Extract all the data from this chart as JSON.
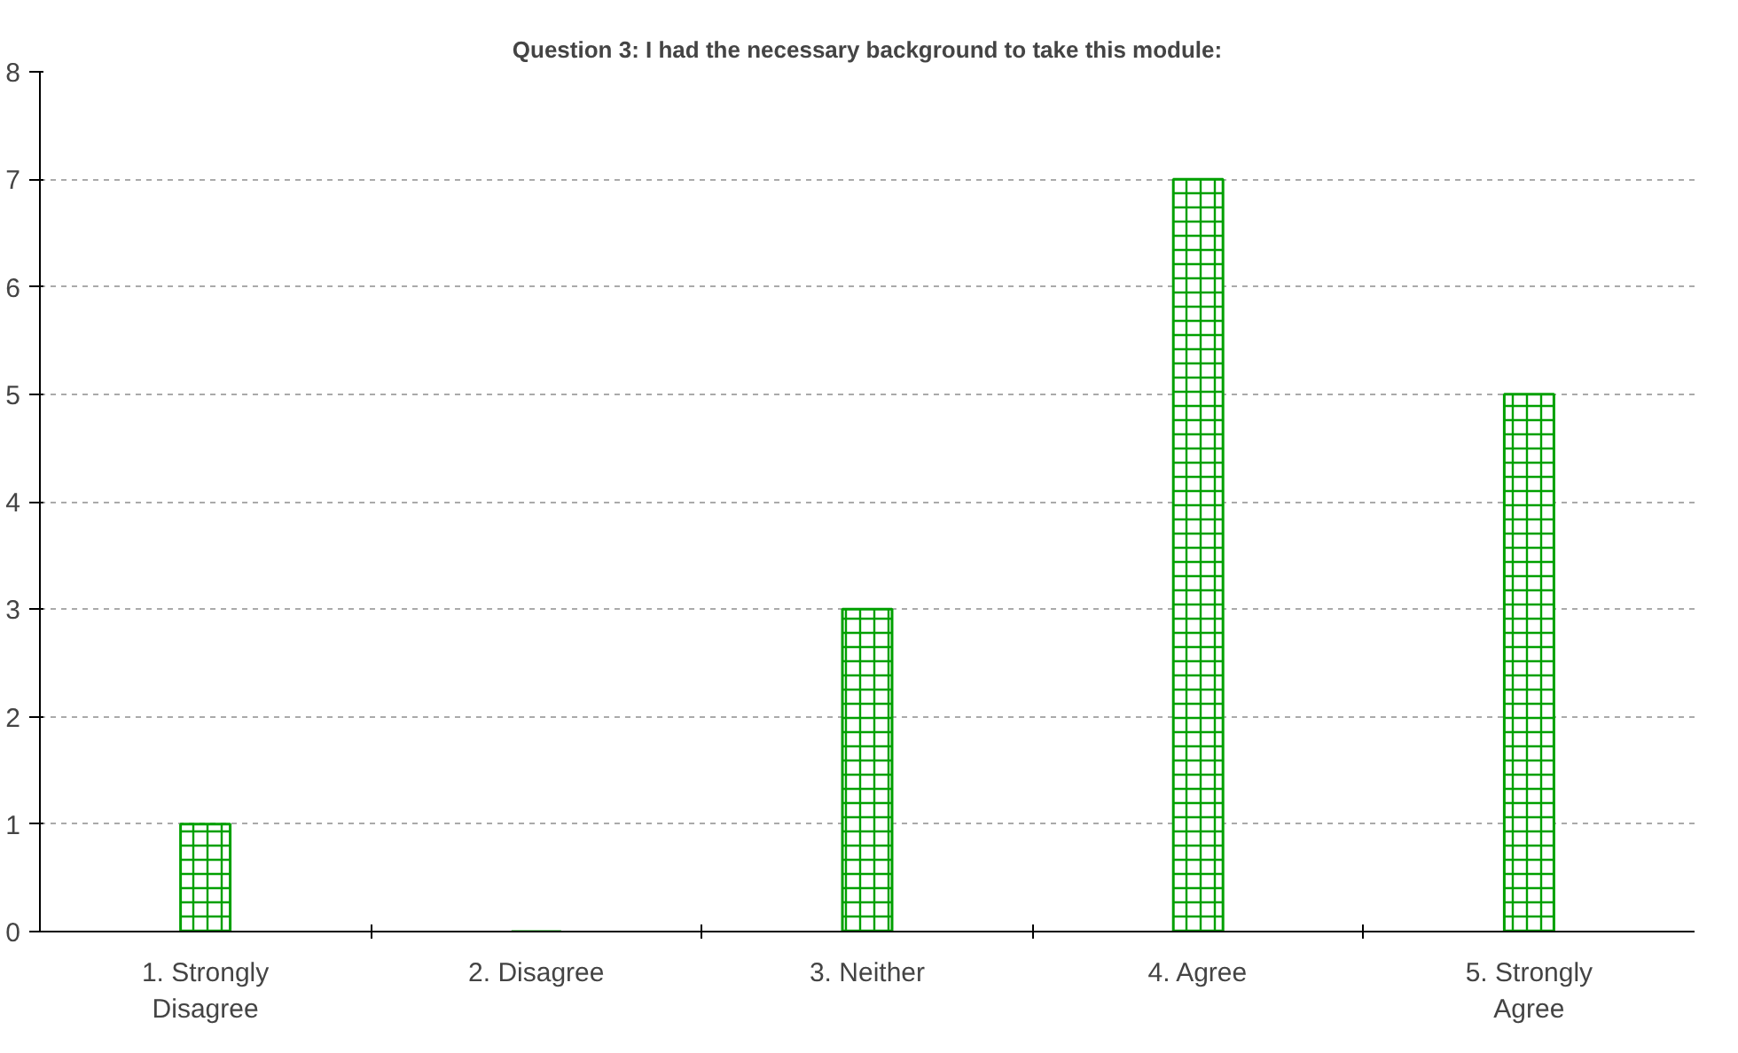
{
  "chart_data": {
    "type": "bar",
    "title": "Question 3: I had the necessary background to take this module:",
    "categories": [
      "1. Strongly Disagree",
      "2. Disagree",
      "3. Neither",
      "4. Agree",
      "5. Strongly Agree"
    ],
    "values": [
      1,
      0,
      3,
      7,
      5
    ],
    "color": "#00a000",
    "ylim": [
      0,
      8
    ],
    "yticks": [
      0,
      1,
      2,
      3,
      4,
      5,
      6,
      7,
      8
    ],
    "grid": "y"
  }
}
